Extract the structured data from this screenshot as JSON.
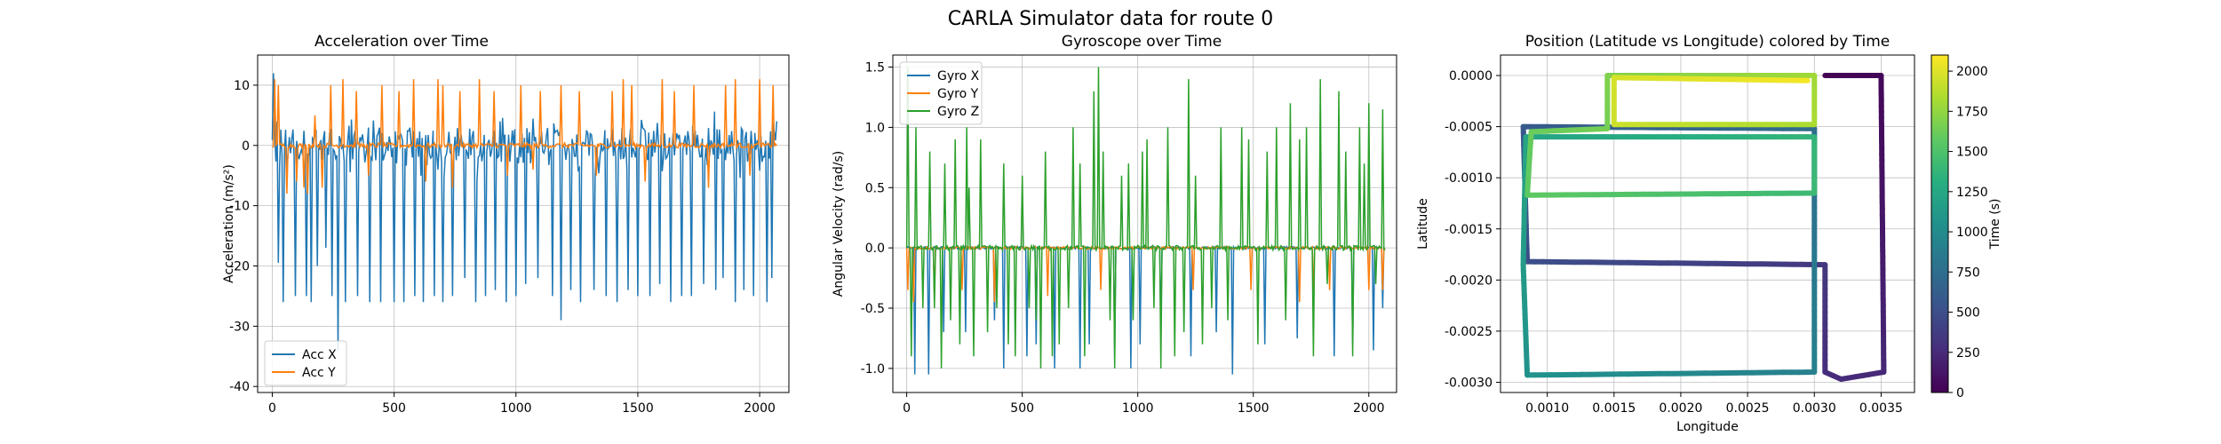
{
  "figure": {
    "title": "CARLA Simulator data for route 0"
  },
  "chart_data": [
    {
      "type": "line",
      "title": "Acceleration over Time",
      "xlabel": "",
      "ylabel": "Acceleration (m/s²)",
      "xlim": [
        -60,
        2120
      ],
      "ylim": [
        -41,
        15
      ],
      "xticks": [
        0,
        500,
        1000,
        1500,
        2000
      ],
      "yticks": [
        -40,
        -30,
        -20,
        -10,
        0,
        10
      ],
      "grid": true,
      "legend": "lower-left",
      "series": [
        {
          "name": "Acc X",
          "color": "#1f77b4",
          "baseline": 0,
          "noise": 3,
          "spikes": [
            [
              5,
              12
            ],
            [
              25,
              -19.5
            ],
            [
              45,
              -26
            ],
            [
              95,
              -25
            ],
            [
              140,
              -25
            ],
            [
              160,
              -26
            ],
            [
              185,
              -20
            ],
            [
              220,
              -17
            ],
            [
              245,
              -25
            ],
            [
              270,
              -34
            ],
            [
              300,
              -26
            ],
            [
              350,
              -25
            ],
            [
              400,
              -26
            ],
            [
              445,
              -26
            ],
            [
              500,
              -26
            ],
            [
              540,
              -26
            ],
            [
              585,
              -25
            ],
            [
              620,
              -26
            ],
            [
              665,
              -25
            ],
            [
              700,
              -26
            ],
            [
              740,
              -25
            ],
            [
              790,
              -22
            ],
            [
              835,
              -26
            ],
            [
              875,
              -25
            ],
            [
              915,
              -24
            ],
            [
              960,
              -26
            ],
            [
              1000,
              -25
            ],
            [
              1040,
              -23
            ],
            [
              1090,
              -22
            ],
            [
              1150,
              -25
            ],
            [
              1185,
              -29
            ],
            [
              1225,
              -24
            ],
            [
              1265,
              -26
            ],
            [
              1320,
              -24
            ],
            [
              1370,
              -25
            ],
            [
              1415,
              -26
            ],
            [
              1460,
              -24
            ],
            [
              1500,
              -25
            ],
            [
              1550,
              -25
            ],
            [
              1590,
              -23
            ],
            [
              1635,
              -26
            ],
            [
              1680,
              -25
            ],
            [
              1720,
              -25
            ],
            [
              1770,
              -23
            ],
            [
              1820,
              -24
            ],
            [
              1850,
              -22
            ],
            [
              1900,
              -26
            ],
            [
              1935,
              -24
            ],
            [
              1975,
              -25
            ],
            [
              2030,
              -26
            ],
            [
              2050,
              -22
            ]
          ]
        },
        {
          "name": "Acc Y",
          "color": "#ff7f0e",
          "baseline": 0,
          "noise": 0.4,
          "spikes": [
            [
              10,
              11
            ],
            [
              25,
              10
            ],
            [
              60,
              -8
            ],
            [
              100,
              -6
            ],
            [
              130,
              -7
            ],
            [
              145,
              -8
            ],
            [
              175,
              5
            ],
            [
              205,
              -7
            ],
            [
              240,
              10
            ],
            [
              290,
              11
            ],
            [
              345,
              9
            ],
            [
              395,
              -5
            ],
            [
              450,
              10
            ],
            [
              520,
              9
            ],
            [
              580,
              11
            ],
            [
              630,
              -6
            ],
            [
              680,
              11
            ],
            [
              700,
              10
            ],
            [
              740,
              -7
            ],
            [
              770,
              9
            ],
            [
              850,
              11
            ],
            [
              910,
              9
            ],
            [
              965,
              -5
            ],
            [
              1020,
              10
            ],
            [
              1070,
              -4
            ],
            [
              1100,
              9
            ],
            [
              1185,
              10
            ],
            [
              1260,
              9
            ],
            [
              1330,
              -5
            ],
            [
              1395,
              9
            ],
            [
              1440,
              11
            ],
            [
              1475,
              10
            ],
            [
              1530,
              -6
            ],
            [
              1600,
              11
            ],
            [
              1650,
              9
            ],
            [
              1730,
              10
            ],
            [
              1790,
              -7
            ],
            [
              1860,
              10
            ],
            [
              1900,
              11
            ],
            [
              1960,
              -5
            ],
            [
              2000,
              11
            ],
            [
              2055,
              10
            ]
          ]
        }
      ]
    },
    {
      "type": "line",
      "title": "Gyroscope over Time",
      "xlabel": "",
      "ylabel": "Angular Velocity (rad/s)",
      "xlim": [
        -60,
        2120
      ],
      "ylim": [
        -1.2,
        1.6
      ],
      "xticks": [
        0,
        500,
        1000,
        1500,
        2000
      ],
      "yticks": [
        -1.0,
        -0.5,
        0.0,
        0.5,
        1.0,
        1.5
      ],
      "grid": true,
      "legend": "upper-left",
      "series": [
        {
          "name": "Gyro X",
          "color": "#1f77b4",
          "baseline": 0,
          "noise": 0.01,
          "spikes": [
            [
              35,
              -1.05
            ],
            [
              95,
              -1.05
            ],
            [
              160,
              -0.7
            ],
            [
              255,
              -0.7
            ],
            [
              380,
              -0.6
            ],
            [
              420,
              -1.0
            ],
            [
              520,
              -0.9
            ],
            [
              560,
              -0.8
            ],
            [
              640,
              -1.0
            ],
            [
              750,
              -1.0
            ],
            [
              790,
              -0.8
            ],
            [
              900,
              -0.9
            ],
            [
              970,
              -1.0
            ],
            [
              1010,
              -0.8
            ],
            [
              1100,
              -0.7
            ],
            [
              1230,
              -0.9
            ],
            [
              1340,
              -0.7
            ],
            [
              1410,
              -1.05
            ],
            [
              1550,
              -0.8
            ],
            [
              1690,
              -0.75
            ],
            [
              1850,
              -0.9
            ],
            [
              1930,
              -0.8
            ],
            [
              2020,
              -0.85
            ],
            [
              2060,
              -0.5
            ]
          ]
        },
        {
          "name": "Gyro Y",
          "color": "#ff7f0e",
          "baseline": 0,
          "noise": 0.01,
          "spikes": [
            [
              5,
              -0.35
            ],
            [
              30,
              -0.45
            ],
            [
              120,
              -0.4
            ],
            [
              240,
              -0.35
            ],
            [
              380,
              -0.45
            ],
            [
              610,
              -0.4
            ],
            [
              840,
              -0.35
            ],
            [
              1240,
              -0.35
            ],
            [
              1490,
              -0.35
            ],
            [
              1700,
              -0.45
            ],
            [
              1760,
              -0.4
            ],
            [
              1830,
              -0.35
            ],
            [
              2000,
              -0.35
            ],
            [
              2060,
              -0.35
            ]
          ]
        },
        {
          "name": "Gyro Z",
          "color": "#2ca02c",
          "baseline": 0,
          "noise": 0.02,
          "spikes": [
            [
              5,
              1.5
            ],
            [
              20,
              -0.9
            ],
            [
              40,
              1.0
            ],
            [
              70,
              -0.5
            ],
            [
              100,
              0.8
            ],
            [
              120,
              -0.5
            ],
            [
              150,
              -1.0
            ],
            [
              165,
              0.7
            ],
            [
              190,
              -0.6
            ],
            [
              210,
              0.9
            ],
            [
              230,
              -0.8
            ],
            [
              260,
              1.0
            ],
            [
              270,
              0.5
            ],
            [
              290,
              -0.9
            ],
            [
              320,
              0.9
            ],
            [
              350,
              -0.7
            ],
            [
              390,
              -0.5
            ],
            [
              420,
              0.7
            ],
            [
              440,
              -0.8
            ],
            [
              470,
              -0.9
            ],
            [
              500,
              0.6
            ],
            [
              530,
              -0.5
            ],
            [
              560,
              -0.6
            ],
            [
              580,
              -1.0
            ],
            [
              600,
              0.8
            ],
            [
              630,
              -0.9
            ],
            [
              660,
              -0.8
            ],
            [
              700,
              -0.5
            ],
            [
              720,
              1.0
            ],
            [
              750,
              0.7
            ],
            [
              770,
              -0.9
            ],
            [
              810,
              1.3
            ],
            [
              830,
              1.5
            ],
            [
              850,
              0.8
            ],
            [
              880,
              -0.6
            ],
            [
              900,
              -1.0
            ],
            [
              930,
              0.6
            ],
            [
              960,
              0.7
            ],
            [
              980,
              -0.6
            ],
            [
              1020,
              0.8
            ],
            [
              1040,
              0.9
            ],
            [
              1070,
              -0.5
            ],
            [
              1100,
              -1.0
            ],
            [
              1130,
              1.0
            ],
            [
              1160,
              -0.9
            ],
            [
              1200,
              -0.7
            ],
            [
              1220,
              1.4
            ],
            [
              1250,
              0.6
            ],
            [
              1280,
              -0.8
            ],
            [
              1320,
              -0.5
            ],
            [
              1360,
              1.0
            ],
            [
              1390,
              -0.6
            ],
            [
              1450,
              1.0
            ],
            [
              1480,
              0.9
            ],
            [
              1520,
              -0.8
            ],
            [
              1560,
              0.8
            ],
            [
              1600,
              1.0
            ],
            [
              1640,
              -0.6
            ],
            [
              1660,
              1.2
            ],
            [
              1700,
              0.9
            ],
            [
              1730,
              1.0
            ],
            [
              1760,
              -0.9
            ],
            [
              1790,
              1.4
            ],
            [
              1820,
              -0.3
            ],
            [
              1870,
              1.3
            ],
            [
              1900,
              0.8
            ],
            [
              1930,
              -0.9
            ],
            [
              1960,
              1.0
            ],
            [
              1980,
              0.7
            ],
            [
              2000,
              1.2
            ],
            [
              2030,
              -0.3
            ],
            [
              2060,
              1.15
            ]
          ]
        }
      ]
    },
    {
      "type": "scatter",
      "title": "Position (Latitude vs Longitude) colored by Time",
      "xlabel": "Longitude",
      "ylabel": "Latitude",
      "xlim": [
        0.00065,
        0.00375
      ],
      "ylim": [
        -0.0031,
        0.0002
      ],
      "xticks": [
        "0.0010",
        "0.0015",
        "0.0020",
        "0.0025",
        "0.0030",
        "0.0035"
      ],
      "yticks": [
        "0.0000",
        "-0.0005",
        "-0.0010",
        "-0.0015",
        "-0.0020",
        "-0.0025",
        "-0.0030"
      ],
      "grid": true,
      "color_by": "time",
      "colorbar": {
        "label": "Time (s)",
        "range": [
          0,
          2100
        ],
        "ticks": [
          0,
          250,
          500,
          750,
          1000,
          1250,
          1500,
          1750,
          2000
        ],
        "colormap": "viridis"
      },
      "route": [
        [
          0.00308,
          0.0
        ],
        [
          0.0035,
          0.0
        ],
        [
          0.00352,
          -0.0029
        ],
        [
          0.0032,
          -0.00297
        ],
        [
          0.00308,
          -0.0029
        ],
        [
          0.00308,
          -0.00185
        ],
        [
          0.00085,
          -0.00182
        ],
        [
          0.00082,
          -0.0005
        ],
        [
          0.003,
          -0.00052
        ],
        [
          0.003,
          -0.0029
        ],
        [
          0.00085,
          -0.00293
        ],
        [
          0.00082,
          -0.00185
        ],
        [
          0.00084,
          -0.0006
        ],
        [
          0.003,
          -0.0006
        ],
        [
          0.003,
          -0.00115
        ],
        [
          0.00085,
          -0.00117
        ],
        [
          0.00088,
          -0.00055
        ],
        [
          0.00145,
          -0.00052
        ],
        [
          0.00145,
          0.0
        ],
        [
          0.003,
          0.0
        ],
        [
          0.003,
          -0.00048
        ],
        [
          0.0015,
          -0.00048
        ],
        [
          0.0015,
          -2e-05
        ],
        [
          0.00295,
          -5e-05
        ]
      ]
    }
  ]
}
